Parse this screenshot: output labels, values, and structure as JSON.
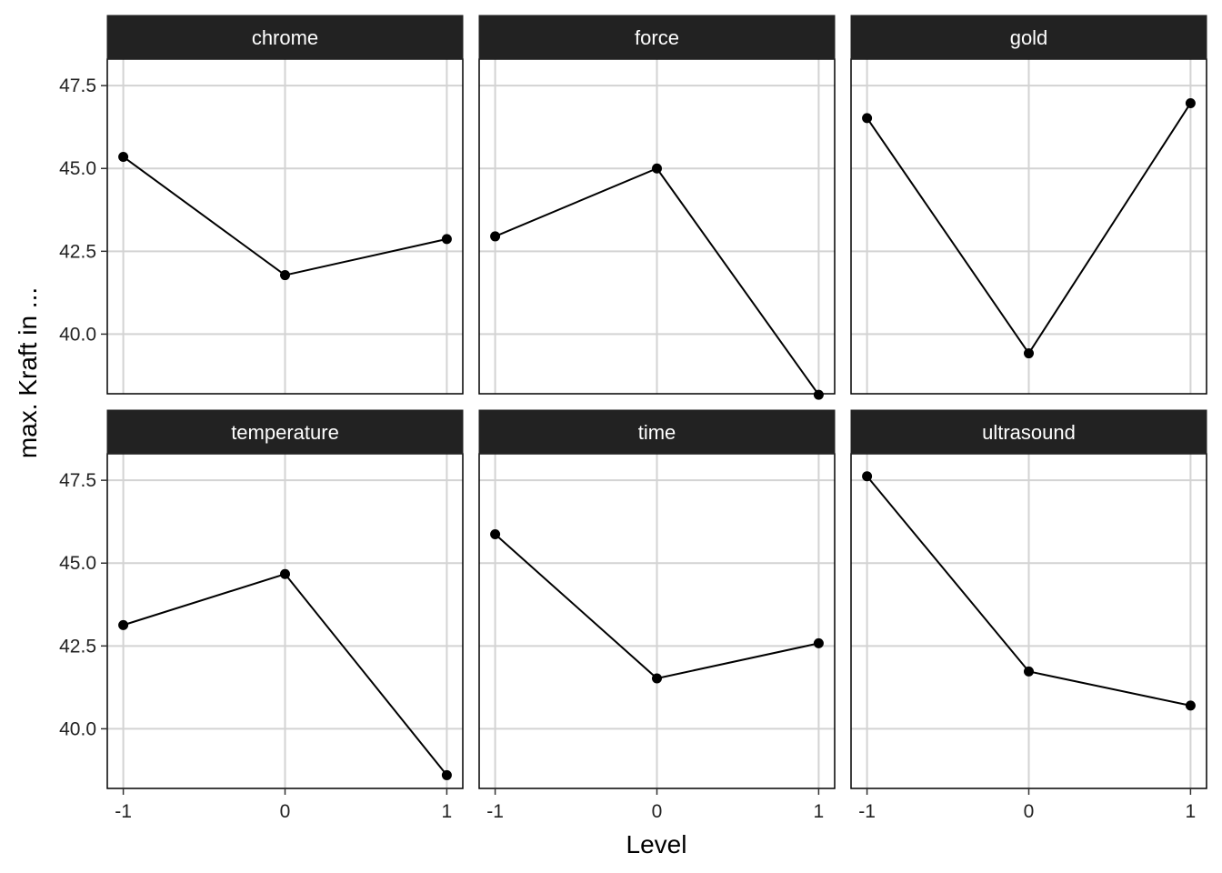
{
  "chart_data": {
    "type": "line",
    "facet_by": "factor",
    "layout": {
      "rows": 2,
      "cols": 3
    },
    "xlabel": "Level",
    "ylabel": "max. Kraft in ...",
    "x": [
      -1,
      0,
      1
    ],
    "x_tick_labels": [
      "-1",
      "0",
      "1"
    ],
    "ylim": [
      38.2,
      48.3
    ],
    "y_ticks": [
      40.0,
      42.5,
      45.0,
      47.5
    ],
    "y_tick_labels": [
      "40.0",
      "42.5",
      "45.0",
      "47.5"
    ],
    "grid": true,
    "theme": "bw",
    "facets": [
      {
        "name": "chrome",
        "values": [
          45.35,
          41.78,
          42.87
        ]
      },
      {
        "name": "force",
        "values": [
          42.95,
          45.0,
          38.17
        ]
      },
      {
        "name": "gold",
        "values": [
          46.52,
          39.42,
          46.97
        ]
      },
      {
        "name": "temperature",
        "values": [
          43.13,
          44.67,
          38.6
        ]
      },
      {
        "name": "time",
        "values": [
          45.87,
          41.52,
          42.58
        ]
      },
      {
        "name": "ultrasound",
        "values": [
          47.62,
          41.73,
          40.7
        ]
      }
    ],
    "colors": {
      "strip_background": "#222222",
      "strip_text": "#ffffff",
      "line": "#000000",
      "point": "#000000",
      "grid": "#d3d3d3",
      "panel_border": "#000000"
    }
  }
}
